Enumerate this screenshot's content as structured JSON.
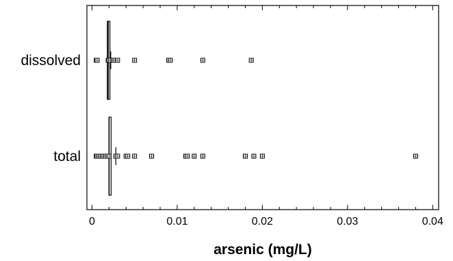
{
  "chart_data": {
    "type": "scatter",
    "subtype": "box-and-dot plot",
    "title": "",
    "xlabel": "arsenic (mg/L)",
    "ylabel": "",
    "xlim": [
      -0.0006,
      0.0407
    ],
    "x_ticks": [
      0,
      0.01,
      0.02,
      0.03,
      0.04
    ],
    "x_tick_labels": [
      "0",
      "0.01",
      "0.02",
      "0.03",
      "0.04"
    ],
    "grid": false,
    "legend": "none",
    "colors": {
      "marks": "#000000",
      "background": "#ffffff"
    },
    "categories": [
      "dissolved",
      "total"
    ],
    "series": [
      {
        "category": "dissolved",
        "points": [
          0.0005,
          0.0006,
          0.0019,
          0.002,
          0.0022,
          0.0025,
          0.0027,
          0.003,
          0.005,
          0.009,
          0.0092,
          0.013,
          0.0187
        ],
        "box": {
          "q1": 0.0018,
          "median": 0.0019,
          "q3": 0.0021
        },
        "mean": 0.0022
      },
      {
        "category": "total",
        "points": [
          0.0005,
          0.0006,
          0.0008,
          0.001,
          0.0012,
          0.0014,
          0.0016,
          0.0018,
          0.002,
          0.0028,
          0.003,
          0.004,
          0.0042,
          0.005,
          0.007,
          0.011,
          0.0112,
          0.012,
          0.013,
          0.018,
          0.019,
          0.02,
          0.038
        ],
        "box": {
          "q1": 0.002,
          "median": 0.002,
          "q3": 0.002
        },
        "mean": 0.0028
      }
    ]
  }
}
